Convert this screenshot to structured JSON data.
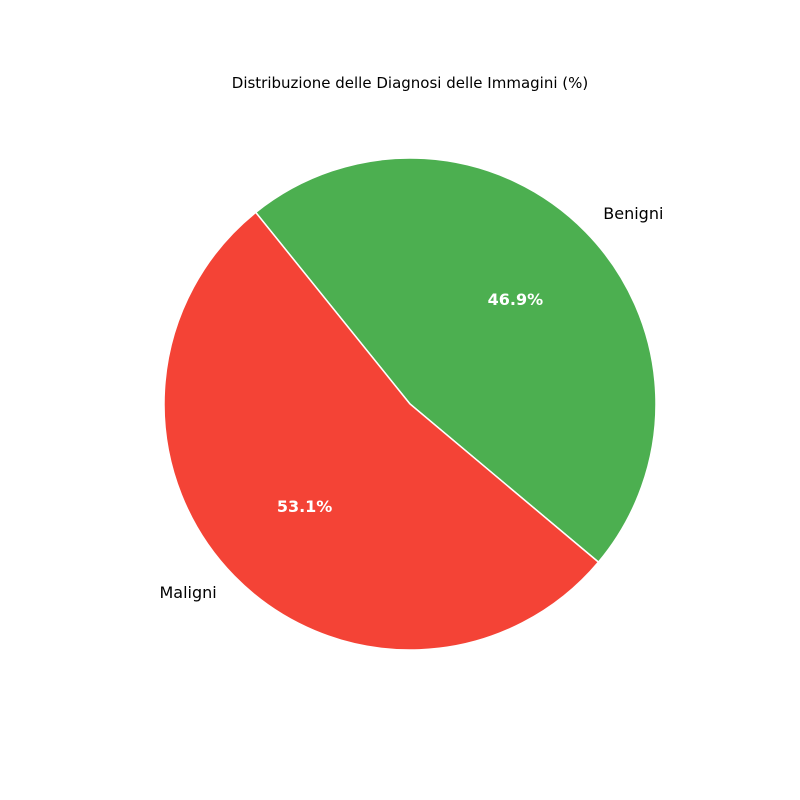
{
  "chart_data": {
    "type": "pie",
    "title": "Distribuzione delle Diagnosi delle Immagini (%)",
    "categories": [
      "Benigni",
      "Maligni"
    ],
    "values": [
      46.9,
      53.1
    ],
    "value_labels": [
      "46.9%",
      "53.1%"
    ],
    "colors": [
      "#4caf50",
      "#f44336"
    ],
    "legend": "none"
  }
}
